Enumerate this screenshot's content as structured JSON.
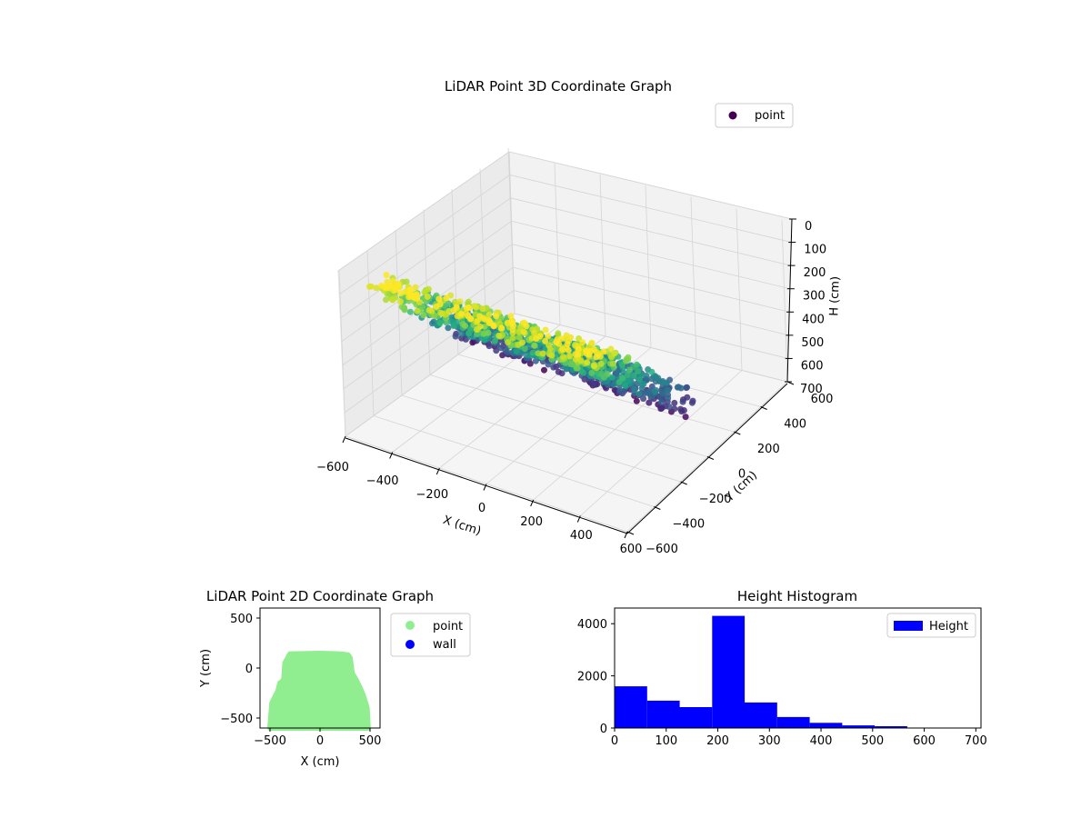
{
  "chart_data": [
    {
      "type": "scatter",
      "projection": "3d",
      "title": "LiDAR Point 3D Coordinate Graph",
      "xlabel": "X (cm)",
      "ylabel": "Y (cm)",
      "zlabel": "H (cm)",
      "xlim": [
        -600,
        600
      ],
      "ylim": [
        -600,
        600
      ],
      "zlim": [
        0,
        700
      ],
      "z_inverted": true,
      "xticks": [
        "−600",
        "−400",
        "−200",
        "0",
        "200",
        "400",
        "600"
      ],
      "yticks": [
        "−600",
        "−400",
        "−200",
        "0",
        "200",
        "400",
        "600"
      ],
      "zticks": [
        "0",
        "100",
        "200",
        "300",
        "400",
        "500",
        "600",
        "700"
      ],
      "grid": true,
      "legend": {
        "placement": "upper-right",
        "entries": [
          "point"
        ]
      },
      "series": [
        {
          "name": "point",
          "color": "#440154",
          "colormap": "viridis"
        }
      ]
    },
    {
      "type": "scatter",
      "title": "LiDAR Point 2D Coordinate Graph",
      "xlabel": "X (cm)",
      "ylabel": "Y (cm)",
      "xlim": [
        -600,
        600
      ],
      "ylim": [
        -600,
        600
      ],
      "xticks": [
        "−500",
        "0",
        "500"
      ],
      "yticks": [
        "−500",
        "0",
        "500"
      ],
      "outline": {
        "x": [
          -500,
          -480,
          -420,
          -400,
          -370,
          -360,
          -350,
          -300,
          0,
          200,
          280,
          300,
          320,
          360,
          400,
          430,
          470,
          480
        ],
        "y": [
          -600,
          -350,
          -230,
          -150,
          -130,
          -100,
          50,
          140,
          145,
          140,
          130,
          100,
          -50,
          -120,
          -200,
          -270,
          -400,
          -600
        ]
      },
      "legend": {
        "placement": "outside-right",
        "entries": [
          "point",
          "wall"
        ]
      },
      "series": [
        {
          "name": "point",
          "color": "#90ee90"
        },
        {
          "name": "wall",
          "color": "#0000ff"
        }
      ]
    },
    {
      "type": "histogram",
      "title": "Height Histogram",
      "xlim": [
        0,
        710
      ],
      "ylim": [
        0,
        4600
      ],
      "xticks": [
        "0",
        "100",
        "200",
        "300",
        "400",
        "500",
        "600",
        "700"
      ],
      "yticks": [
        "0",
        "2000",
        "4000"
      ],
      "bin_edges": [
        0,
        63,
        126,
        189,
        252,
        315,
        378,
        441,
        504,
        567,
        630,
        693
      ],
      "counts": [
        1600,
        1050,
        800,
        4300,
        980,
        420,
        200,
        100,
        70,
        15,
        10
      ],
      "legend": {
        "placement": "upper-right",
        "entries": [
          "Height"
        ]
      },
      "series": [
        {
          "name": "Height",
          "color": "#0000ff"
        }
      ]
    }
  ]
}
